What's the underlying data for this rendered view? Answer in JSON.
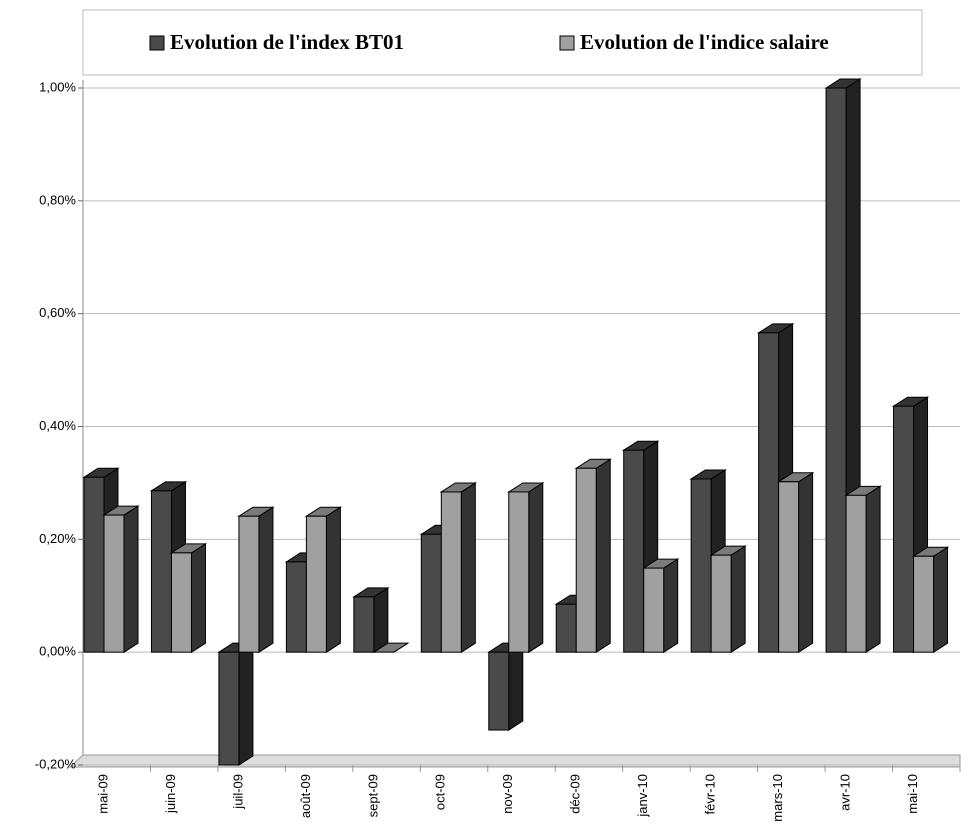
{
  "chart_data": {
    "type": "bar3d",
    "categories": [
      "mai-09",
      "juin-09",
      "juil-09",
      "août-09",
      "sept-09",
      "oct-09",
      "nov-09",
      "déc-09",
      "janv-10",
      "févr-10",
      "mars-10",
      "avr-10",
      "mai-10"
    ],
    "series": [
      {
        "name": "Evolution de l'index BT01",
        "color": "#4a4a4a",
        "values": [
          0.31,
          0.286,
          -0.2,
          0.16,
          0.098,
          0.209,
          -0.138,
          0.085,
          0.358,
          0.307,
          0.566,
          1.0,
          0.436
        ]
      },
      {
        "name": "Evolution de l'indice salaire",
        "color": "#a0a0a0",
        "values": [
          0.243,
          0.176,
          0.241,
          0.241,
          0,
          0.284,
          0.284,
          0.326,
          0.149,
          0.172,
          0.302,
          0.278,
          0.17
        ]
      }
    ],
    "ylim": [
      -0.2,
      1.0
    ],
    "yticks": [
      {
        "value": -0.2,
        "label": "-0,20%"
      },
      {
        "value": 0,
        "label": "0,00%"
      },
      {
        "value": 0.2,
        "label": "0,20%"
      },
      {
        "value": 0.4,
        "label": "0,40%"
      },
      {
        "value": 0.6,
        "label": "0,60%"
      },
      {
        "value": 0.8,
        "label": "0,80%"
      },
      {
        "value": 1.0,
        "label": "1,00%"
      }
    ],
    "grid": true,
    "legend": "top"
  }
}
